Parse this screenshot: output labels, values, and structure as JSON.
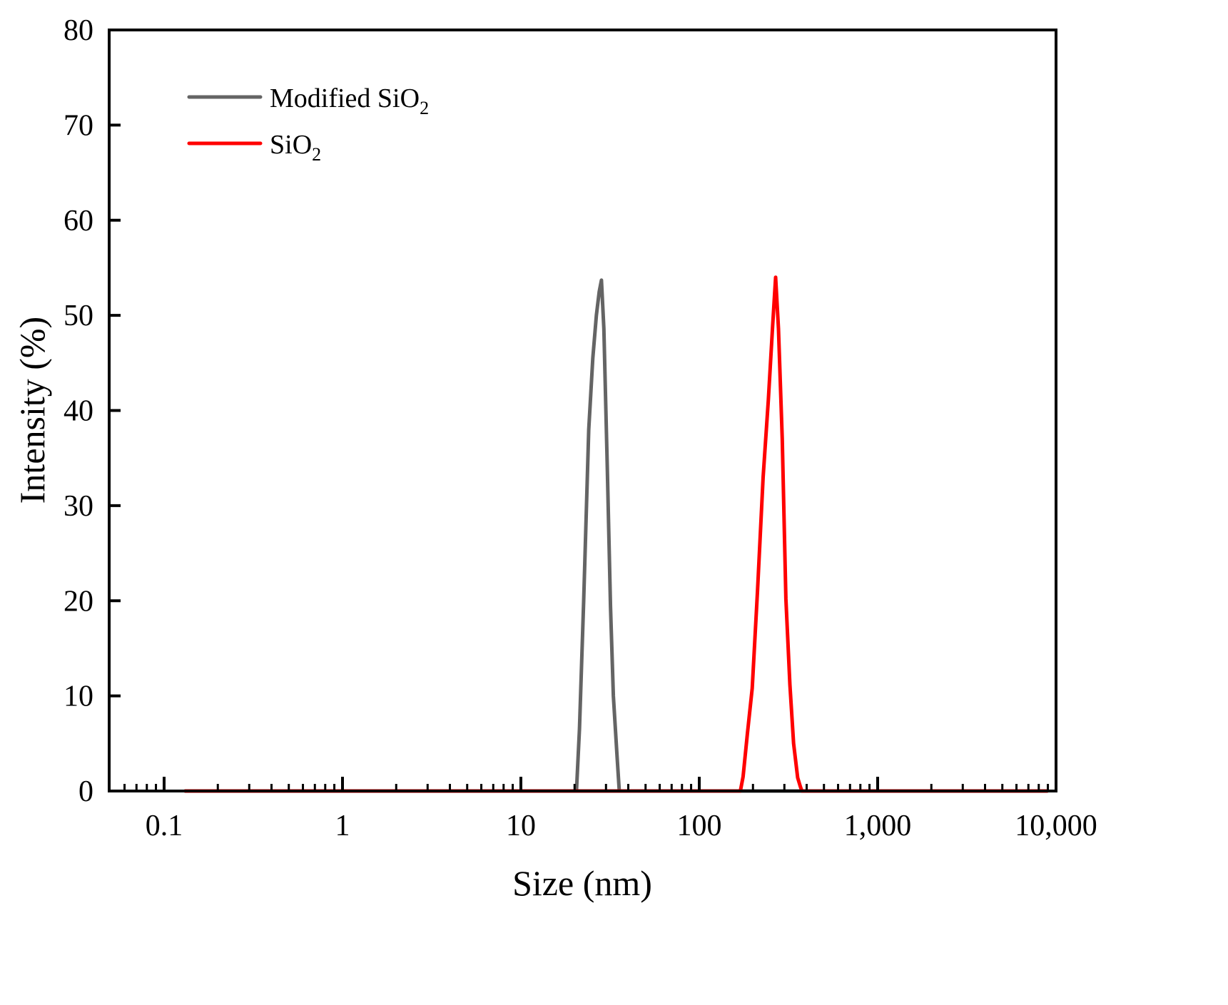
{
  "chart_data": {
    "type": "line",
    "title": "",
    "xlabel": "Size (nm)",
    "ylabel": "Intensity (%)",
    "xscale": "log",
    "xlim": [
      0.049,
      10000
    ],
    "ylim": [
      0,
      80
    ],
    "grid": false,
    "legend_position": "upper-left",
    "x_ticks": [
      0.1,
      1,
      10,
      100,
      1000,
      10000
    ],
    "x_tick_labels": [
      "0.1",
      "1",
      "10",
      "100",
      "1,000",
      "10,000"
    ],
    "y_ticks": [
      0,
      10,
      20,
      30,
      40,
      50,
      60,
      70,
      80
    ],
    "y_tick_labels": [
      "0",
      "10",
      "20",
      "30",
      "40",
      "50",
      "60",
      "70",
      "80"
    ],
    "series": [
      {
        "name": "Modified SiO2",
        "legend_main": "Modified SiO",
        "legend_sub": "2",
        "color": "#646464",
        "x": [
          0.13,
          20.5,
          21.3,
          22.5,
          24.0,
          25.3,
          26.5,
          27.5,
          28.3,
          29.2,
          30.5,
          31.8,
          33.0,
          34.5,
          35.6,
          9000
        ],
        "y": [
          0,
          0,
          6.5,
          20,
          38,
          45.5,
          50,
          52.5,
          53.7,
          48.6,
          34,
          19.4,
          10,
          4,
          0,
          0
        ]
      },
      {
        "name": "SiO2",
        "legend_main": "SiO",
        "legend_sub": "2",
        "color": "#ff0000",
        "x": [
          0.13,
          170,
          176,
          186,
          198,
          212,
          228,
          244,
          258,
          268,
          278,
          292,
          306,
          322,
          338,
          356,
          368,
          376,
          9000
        ],
        "y": [
          0,
          0,
          1.5,
          6,
          10.8,
          21,
          33,
          41.1,
          49,
          54,
          48.6,
          37,
          20.2,
          11.2,
          5,
          1.4,
          0.5,
          0,
          0
        ]
      }
    ]
  }
}
